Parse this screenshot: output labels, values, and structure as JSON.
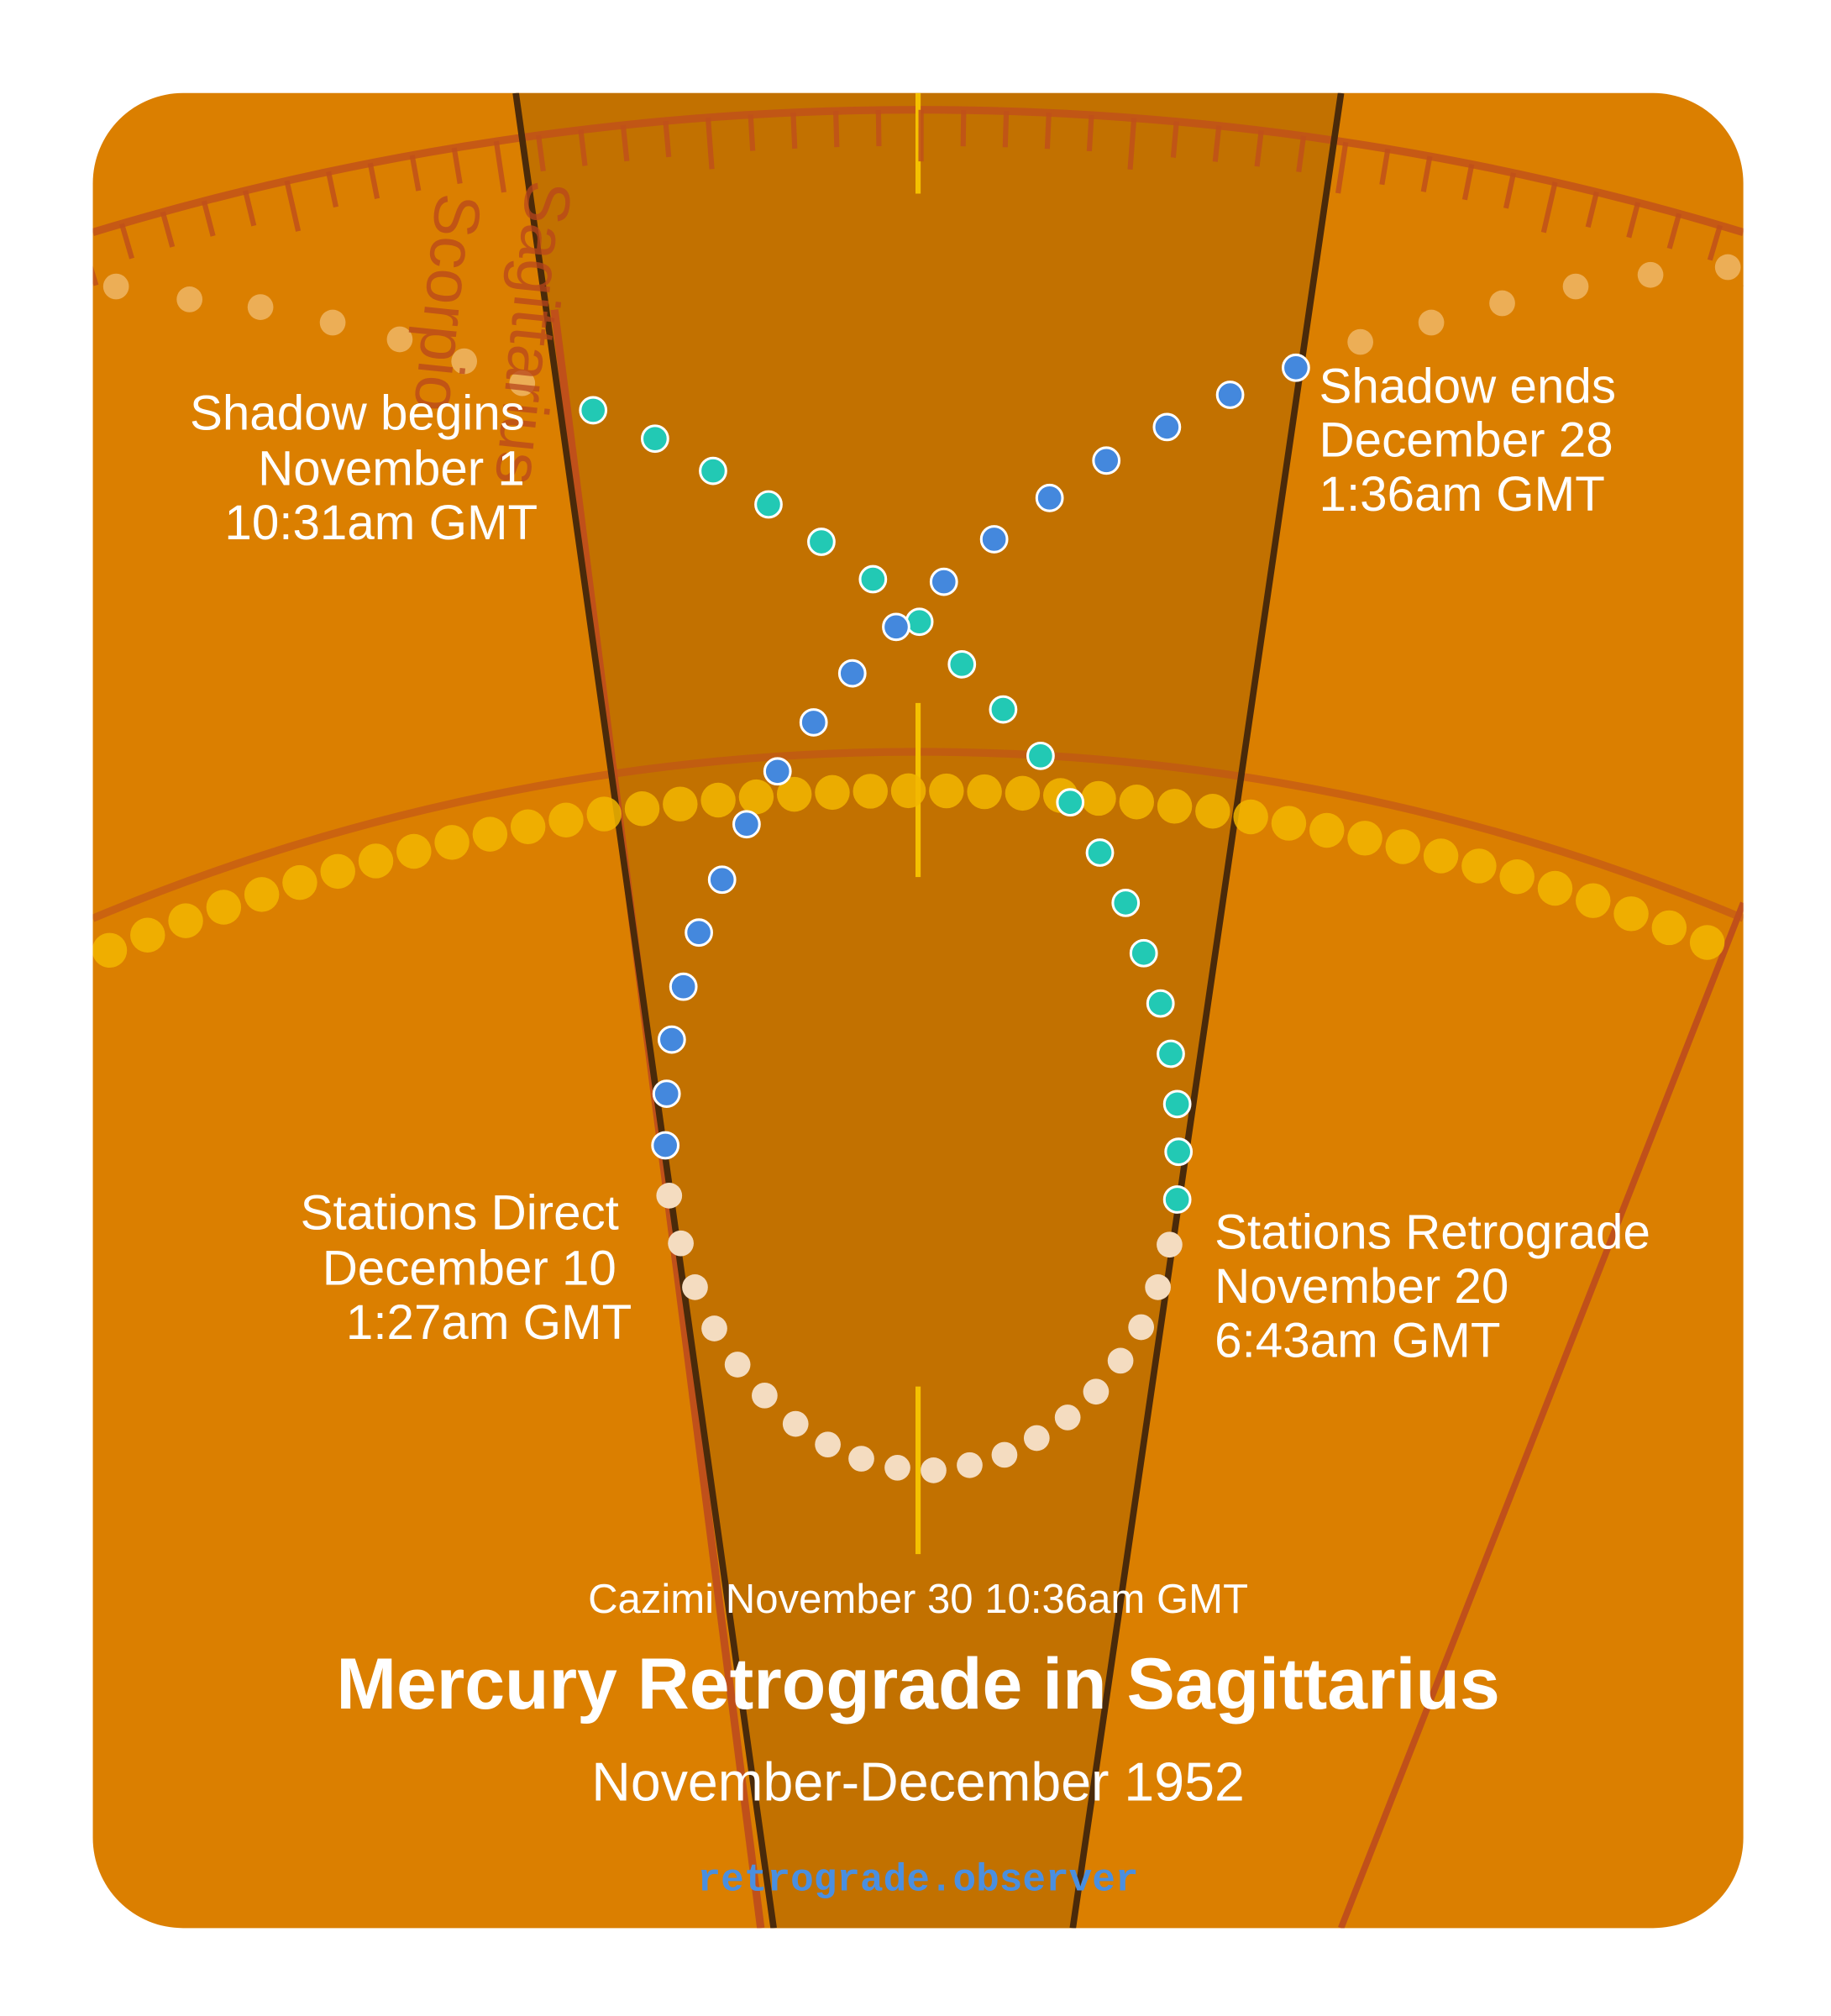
{
  "signs": [
    "Scorpio",
    "Sagittarius"
  ],
  "annotations": {
    "shadow_begins": [
      "Shadow begins",
      "November 1",
      "10:31am GMT"
    ],
    "shadow_ends": [
      "Shadow ends",
      "December 28",
      "1:36am GMT"
    ],
    "stations_direct": [
      "Stations Direct",
      "December 10",
      "1:27am GMT"
    ],
    "stations_retrograde": [
      "Stations Retrograde",
      "November 20",
      "6:43am GMT"
    ],
    "cazimi": "Cazimi November 30 10:36am GMT"
  },
  "title": "Mercury Retrograde in Sagittarius",
  "subtitle": "November-December 1952",
  "footer": "retrograde.observer"
}
